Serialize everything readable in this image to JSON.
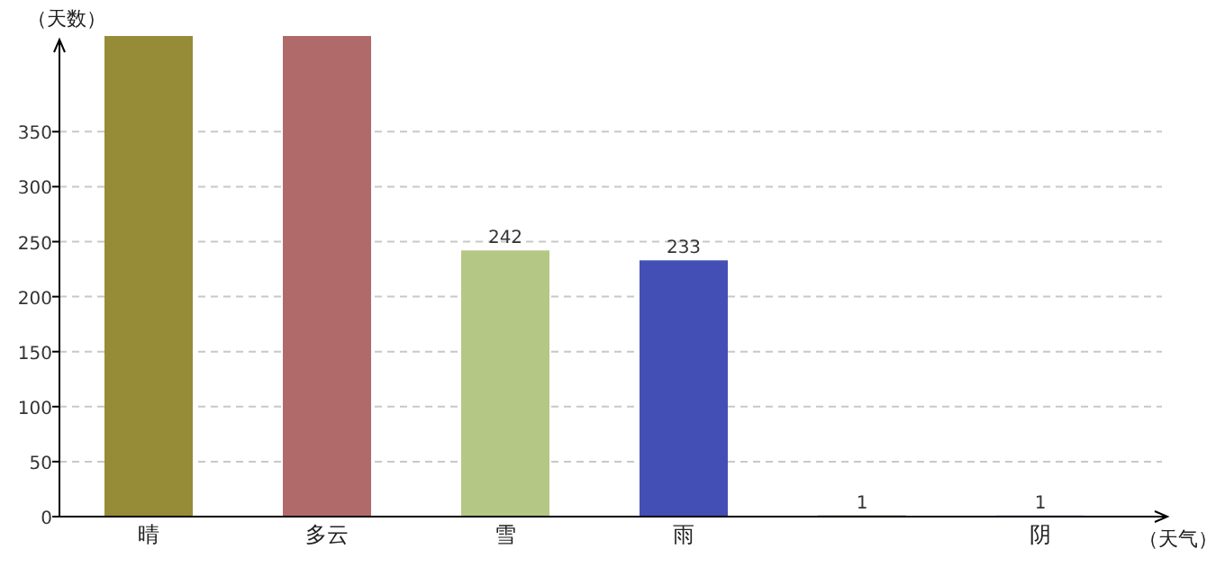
{
  "chart_data": {
    "type": "bar",
    "xlabel": "（天气）",
    "ylabel": "（天数）",
    "categories": [
      "晴",
      "多云",
      "雪",
      "雨",
      null,
      "阴"
    ],
    "values": [
      437,
      437,
      242,
      233,
      1,
      1
    ],
    "colors": [
      "#968c38",
      "#b06a6a",
      "#b5c785",
      "#444fb5",
      "#333300",
      "#9966cc"
    ],
    "value_labels": [
      null,
      null,
      "242",
      "233",
      "1",
      "1"
    ],
    "ylim": [
      0,
      437
    ],
    "yticks": [
      0,
      50,
      100,
      150,
      200,
      250,
      300,
      350
    ],
    "grid": "y"
  }
}
